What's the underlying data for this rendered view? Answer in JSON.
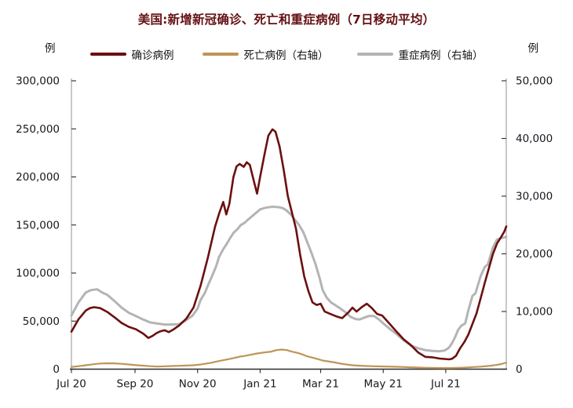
{
  "chart_data": {
    "type": "line",
    "title": "美国:新增新冠确诊、死亡和重症病例（7日移动平均）",
    "unit_left": "例",
    "unit_right": "例",
    "legend_position": "top",
    "grid": false,
    "x_domain_days": 424,
    "x_start": "Jul 2020",
    "x_end": "late Aug 2021",
    "x_ticks": [
      {
        "label": "Jul 20",
        "day": 0
      },
      {
        "label": "Sep 20",
        "day": 62
      },
      {
        "label": "Nov 20",
        "day": 123
      },
      {
        "label": "Jan 21",
        "day": 184
      },
      {
        "label": "Mar 21",
        "day": 243
      },
      {
        "label": "May 21",
        "day": 304
      },
      {
        "label": "Jul 21",
        "day": 365
      }
    ],
    "y_left": {
      "min": 0,
      "max": 300000,
      "step": 50000,
      "tick_labels": [
        "0",
        "50,000",
        "100,000",
        "150,000",
        "200,000",
        "250,000",
        "300,000"
      ]
    },
    "y_right": {
      "min": 0,
      "max": 50000,
      "step": 10000,
      "tick_labels": [
        "0",
        "10,000",
        "20,000",
        "30,000",
        "40,000",
        "50,000"
      ]
    },
    "series": [
      {
        "name": "确诊病例",
        "axis": "left",
        "color": "#6b100f",
        "width": 2.6,
        "points": [
          [
            0,
            39000
          ],
          [
            7,
            52000
          ],
          [
            14,
            61000
          ],
          [
            18,
            63500
          ],
          [
            22,
            64500
          ],
          [
            28,
            63500
          ],
          [
            35,
            59500
          ],
          [
            42,
            54000
          ],
          [
            49,
            48000
          ],
          [
            56,
            44000
          ],
          [
            63,
            41500
          ],
          [
            70,
            37000
          ],
          [
            75,
            32500
          ],
          [
            79,
            34500
          ],
          [
            83,
            37500
          ],
          [
            87,
            39500
          ],
          [
            91,
            40500
          ],
          [
            95,
            38500
          ],
          [
            99,
            41000
          ],
          [
            105,
            45500
          ],
          [
            112,
            52500
          ],
          [
            119,
            64000
          ],
          [
            126,
            87000
          ],
          [
            133,
            116000
          ],
          [
            140,
            148000
          ],
          [
            144,
            162000
          ],
          [
            148,
            174000
          ],
          [
            151,
            161000
          ],
          [
            154,
            172000
          ],
          [
            158,
            200000
          ],
          [
            161,
            211000
          ],
          [
            164,
            213500
          ],
          [
            168,
            210500
          ],
          [
            171,
            215300
          ],
          [
            174,
            212500
          ],
          [
            178,
            195000
          ],
          [
            181,
            182600
          ],
          [
            184,
            200000
          ],
          [
            188,
            222000
          ],
          [
            192,
            243000
          ],
          [
            196,
            249500
          ],
          [
            199,
            247000
          ],
          [
            203,
            231500
          ],
          [
            207,
            207000
          ],
          [
            211,
            180000
          ],
          [
            215,
            163000
          ],
          [
            219,
            146000
          ],
          [
            223,
            119000
          ],
          [
            227,
            96500
          ],
          [
            231,
            81500
          ],
          [
            235,
            69500
          ],
          [
            239,
            66800
          ],
          [
            243,
            68100
          ],
          [
            247,
            59900
          ],
          [
            253,
            57200
          ],
          [
            258,
            55000
          ],
          [
            264,
            53100
          ],
          [
            270,
            59000
          ],
          [
            274,
            64000
          ],
          [
            278,
            59900
          ],
          [
            283,
            64500
          ],
          [
            288,
            68100
          ],
          [
            293,
            63500
          ],
          [
            298,
            57500
          ],
          [
            303,
            55800
          ],
          [
            310,
            47500
          ],
          [
            317,
            39000
          ],
          [
            324,
            31000
          ],
          [
            331,
            25000
          ],
          [
            338,
            17500
          ],
          [
            345,
            12800
          ],
          [
            352,
            12300
          ],
          [
            359,
            11000
          ],
          [
            364,
            10600
          ],
          [
            368,
            10200
          ],
          [
            371,
            10800
          ],
          [
            375,
            14000
          ],
          [
            379,
            21800
          ],
          [
            383,
            28000
          ],
          [
            387,
            36000
          ],
          [
            391,
            47000
          ],
          [
            395,
            58000
          ],
          [
            399,
            73600
          ],
          [
            403,
            89900
          ],
          [
            407,
            104900
          ],
          [
            411,
            119900
          ],
          [
            415,
            130800
          ],
          [
            419,
            137600
          ],
          [
            422,
            143000
          ],
          [
            424,
            148500
          ]
        ]
      },
      {
        "name": "死亡病例（右轴）",
        "axis": "right",
        "color": "#bf9457",
        "width": 2.2,
        "points": [
          [
            0,
            380
          ],
          [
            7,
            520
          ],
          [
            14,
            681
          ],
          [
            21,
            850
          ],
          [
            28,
            980
          ],
          [
            35,
            1020
          ],
          [
            42,
            1000
          ],
          [
            49,
            930
          ],
          [
            56,
            820
          ],
          [
            63,
            700
          ],
          [
            70,
            610
          ],
          [
            77,
            520
          ],
          [
            84,
            454
          ],
          [
            91,
            500
          ],
          [
            98,
            545
          ],
          [
            105,
            590
          ],
          [
            112,
            630
          ],
          [
            119,
            681
          ],
          [
            126,
            800
          ],
          [
            133,
            1000
          ],
          [
            137,
            1130
          ],
          [
            141,
            1300
          ],
          [
            148,
            1550
          ],
          [
            153,
            1730
          ],
          [
            160,
            2000
          ],
          [
            165,
            2200
          ],
          [
            168,
            2275
          ],
          [
            175,
            2500
          ],
          [
            181,
            2725
          ],
          [
            188,
            2900
          ],
          [
            195,
            3050
          ],
          [
            200,
            3300
          ],
          [
            205,
            3406
          ],
          [
            210,
            3300
          ],
          [
            214,
            3092
          ],
          [
            221,
            2800
          ],
          [
            226,
            2500
          ],
          [
            229,
            2275
          ],
          [
            235,
            2000
          ],
          [
            240,
            1750
          ],
          [
            245,
            1500
          ],
          [
            250,
            1362
          ],
          [
            257,
            1150
          ],
          [
            261,
            1000
          ],
          [
            268,
            820
          ],
          [
            274,
            681
          ],
          [
            281,
            600
          ],
          [
            288,
            545
          ],
          [
            295,
            510
          ],
          [
            302,
            480
          ],
          [
            309,
            450
          ],
          [
            316,
            420
          ],
          [
            323,
            380
          ],
          [
            330,
            320
          ],
          [
            337,
            280
          ],
          [
            344,
            250
          ],
          [
            351,
            220
          ],
          [
            358,
            200
          ],
          [
            365,
            195
          ],
          [
            372,
            210
          ],
          [
            379,
            240
          ],
          [
            386,
            300
          ],
          [
            393,
            380
          ],
          [
            400,
            450
          ],
          [
            407,
            560
          ],
          [
            414,
            720
          ],
          [
            419,
            880
          ],
          [
            424,
            1130
          ]
        ]
      },
      {
        "name": "重症病例（右轴）",
        "axis": "right",
        "color": "#b4b4b4",
        "width": 3,
        "points": [
          [
            0,
            9300
          ],
          [
            7,
            11600
          ],
          [
            14,
            13300
          ],
          [
            19,
            13700
          ],
          [
            25,
            13850
          ],
          [
            31,
            13200
          ],
          [
            35,
            12900
          ],
          [
            42,
            11800
          ],
          [
            49,
            10670
          ],
          [
            56,
            9767
          ],
          [
            63,
            9200
          ],
          [
            70,
            8600
          ],
          [
            77,
            8100
          ],
          [
            84,
            7900
          ],
          [
            91,
            7724
          ],
          [
            98,
            7750
          ],
          [
            105,
            7800
          ],
          [
            111,
            8406
          ],
          [
            118,
            9264
          ],
          [
            123,
            10500
          ],
          [
            126,
            12000
          ],
          [
            130,
            13200
          ],
          [
            133,
            14500
          ],
          [
            137,
            16078
          ],
          [
            141,
            17800
          ],
          [
            144,
            19482
          ],
          [
            148,
            20800
          ],
          [
            151,
            21600
          ],
          [
            155,
            22800
          ],
          [
            158,
            23614
          ],
          [
            162,
            24300
          ],
          [
            165,
            24976
          ],
          [
            169,
            25400
          ],
          [
            172,
            25886
          ],
          [
            176,
            26500
          ],
          [
            180,
            27100
          ],
          [
            184,
            27700
          ],
          [
            188,
            27930
          ],
          [
            192,
            28067
          ],
          [
            196,
            28160
          ],
          [
            202,
            28100
          ],
          [
            206,
            27930
          ],
          [
            210,
            27482
          ],
          [
            214,
            26800
          ],
          [
            218,
            25886
          ],
          [
            222,
            24976
          ],
          [
            226,
            23800
          ],
          [
            230,
            22000
          ],
          [
            234,
            20200
          ],
          [
            238,
            18200
          ],
          [
            242,
            15800
          ],
          [
            245,
            13700
          ],
          [
            249,
            12400
          ],
          [
            253,
            11580
          ],
          [
            261,
            10670
          ],
          [
            268,
            9767
          ],
          [
            272,
            9086
          ],
          [
            277,
            8700
          ],
          [
            281,
            8624
          ],
          [
            285,
            8900
          ],
          [
            290,
            9223
          ],
          [
            295,
            9223
          ],
          [
            300,
            8600
          ],
          [
            304,
            7942
          ],
          [
            311,
            6900
          ],
          [
            317,
            6100
          ],
          [
            324,
            5000
          ],
          [
            331,
            4100
          ],
          [
            338,
            3637
          ],
          [
            345,
            3300
          ],
          [
            352,
            3150
          ],
          [
            359,
            3100
          ],
          [
            364,
            3250
          ],
          [
            368,
            3700
          ],
          [
            371,
            4500
          ],
          [
            374,
            5500
          ],
          [
            377,
            6812
          ],
          [
            380,
            7500
          ],
          [
            384,
            7943
          ],
          [
            387,
            10218
          ],
          [
            391,
            12712
          ],
          [
            394,
            13174
          ],
          [
            399,
            16120
          ],
          [
            403,
            17711
          ],
          [
            406,
            18165
          ],
          [
            411,
            21120
          ],
          [
            415,
            22482
          ],
          [
            419,
            22709
          ],
          [
            424,
            22937
          ]
        ]
      }
    ]
  }
}
